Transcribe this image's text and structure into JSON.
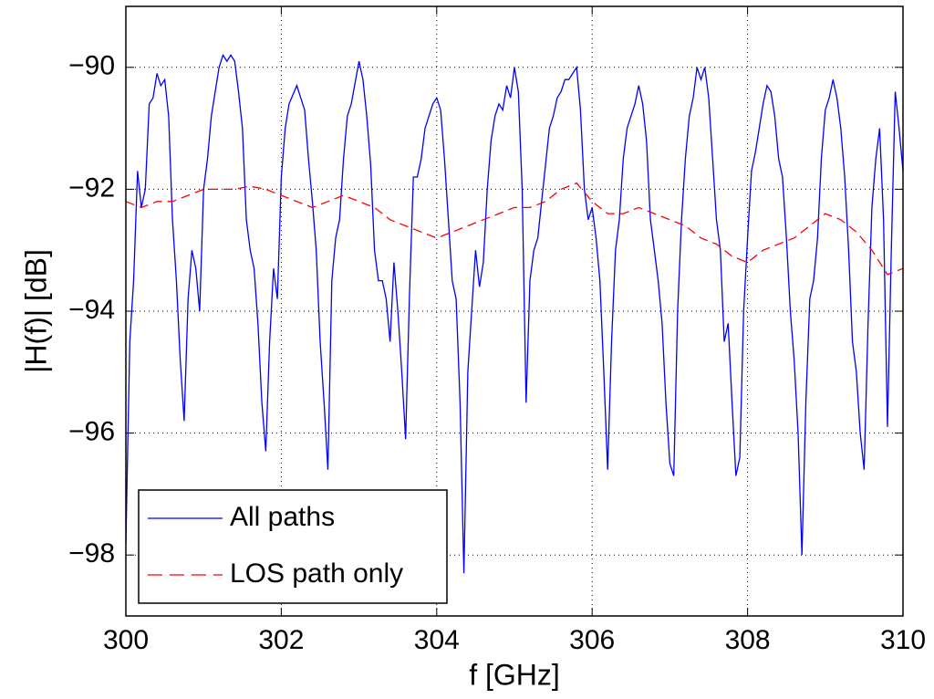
{
  "chart_data": {
    "type": "line",
    "xlabel": "f [GHz]",
    "ylabel": "|H(f)| [dB]",
    "xlim": [
      300,
      310
    ],
    "xticks": [
      300,
      302,
      304,
      306,
      308,
      310
    ],
    "ylim": [
      -99,
      -89
    ],
    "yticks": [
      {
        "value": -98,
        "label": "−98"
      },
      {
        "value": -96,
        "label": "−96"
      },
      {
        "value": -94,
        "label": "−94"
      },
      {
        "value": -92,
        "label": "−92"
      },
      {
        "value": -90,
        "label": "−90"
      }
    ],
    "grid": true,
    "legend": "lower left",
    "series": [
      {
        "name": "All paths",
        "color": "#0000ff",
        "linestyle": "solid",
        "x": [
          300.0,
          300.05,
          300.1,
          300.15,
          300.2,
          300.25,
          300.3,
          300.35,
          300.4,
          300.45,
          300.5,
          300.55,
          300.6,
          300.65,
          300.7,
          300.75,
          300.8,
          300.85,
          300.9,
          300.95,
          301.0,
          301.05,
          301.1,
          301.2,
          301.25,
          301.3,
          301.35,
          301.4,
          301.45,
          301.5,
          301.55,
          301.6,
          301.65,
          301.7,
          301.75,
          301.8,
          301.85,
          301.9,
          301.95,
          302.0,
          302.05,
          302.1,
          302.2,
          302.25,
          302.3,
          302.35,
          302.4,
          302.45,
          302.5,
          302.55,
          302.6,
          302.65,
          302.7,
          302.75,
          302.8,
          302.85,
          302.9,
          303.0,
          303.05,
          303.1,
          303.15,
          303.2,
          303.25,
          303.3,
          303.35,
          303.4,
          303.45,
          303.5,
          303.55,
          303.6,
          303.65,
          303.7,
          303.75,
          303.8,
          303.85,
          303.9,
          303.95,
          304.0,
          304.05,
          304.1,
          304.15,
          304.2,
          304.25,
          304.3,
          304.35,
          304.4,
          304.45,
          304.5,
          304.55,
          304.6,
          304.65,
          304.7,
          304.75,
          304.8,
          304.85,
          304.9,
          304.95,
          305.0,
          305.05,
          305.1,
          305.15,
          305.2,
          305.25,
          305.3,
          305.35,
          305.4,
          305.45,
          305.5,
          305.55,
          305.6,
          305.65,
          305.7,
          305.75,
          305.8,
          305.85,
          305.9,
          305.95,
          306.0,
          306.05,
          306.1,
          306.15,
          306.2,
          306.25,
          306.3,
          306.35,
          306.4,
          306.45,
          306.5,
          306.55,
          306.6,
          306.65,
          306.7,
          306.75,
          306.8,
          306.85,
          306.9,
          306.95,
          307.0,
          307.05,
          307.1,
          307.15,
          307.2,
          307.25,
          307.3,
          307.35,
          307.4,
          307.45,
          307.5,
          307.55,
          307.6,
          307.65,
          307.7,
          307.75,
          307.8,
          307.85,
          307.9,
          307.95,
          308.0,
          308.05,
          308.1,
          308.15,
          308.2,
          308.25,
          308.3,
          308.35,
          308.4,
          308.45,
          308.5,
          308.55,
          308.6,
          308.65,
          308.7,
          308.75,
          308.8,
          308.85,
          308.9,
          308.95,
          309.0,
          309.05,
          309.1,
          309.15,
          309.2,
          309.25,
          309.3,
          309.35,
          309.4,
          309.45,
          309.5,
          309.55,
          309.6,
          309.65,
          309.7,
          309.75,
          309.8,
          309.85,
          309.9,
          309.95,
          310.0
        ],
        "values": [
          -97.8,
          -94.5,
          -93.5,
          -91.7,
          -92.3,
          -92.0,
          -90.6,
          -90.5,
          -90.1,
          -90.3,
          -90.2,
          -90.8,
          -92.5,
          -93.5,
          -94.8,
          -95.8,
          -93.8,
          -93.0,
          -93.3,
          -94.0,
          -92.0,
          -91.5,
          -90.8,
          -90.0,
          -89.8,
          -89.9,
          -89.8,
          -89.9,
          -90.4,
          -91.0,
          -92.5,
          -93.0,
          -93.3,
          -94.2,
          -95.5,
          -96.3,
          -94.5,
          -93.3,
          -93.8,
          -91.8,
          -91.0,
          -90.6,
          -90.3,
          -90.5,
          -90.7,
          -91.5,
          -92.2,
          -93.0,
          -94.5,
          -95.5,
          -96.6,
          -93.5,
          -92.8,
          -92.5,
          -91.5,
          -90.8,
          -90.6,
          -89.9,
          -90.2,
          -90.8,
          -91.6,
          -93.0,
          -93.5,
          -93.5,
          -93.8,
          -94.5,
          -93.2,
          -94.0,
          -95.0,
          -96.1,
          -93.7,
          -91.8,
          -91.8,
          -91.5,
          -91.0,
          -90.8,
          -90.6,
          -90.5,
          -90.7,
          -91.5,
          -92.5,
          -93.5,
          -93.8,
          -95.5,
          -98.3,
          -95.0,
          -94.0,
          -93.0,
          -93.6,
          -93.2,
          -92.0,
          -91.2,
          -90.8,
          -90.6,
          -90.7,
          -90.3,
          -90.5,
          -90.0,
          -90.4,
          -92.0,
          -95.5,
          -93.5,
          -93.0,
          -92.8,
          -92.2,
          -91.6,
          -91.0,
          -90.8,
          -90.5,
          -90.4,
          -90.2,
          -90.2,
          -90.1,
          -90.0,
          -90.7,
          -92.0,
          -92.5,
          -92.3,
          -92.8,
          -93.5,
          -95.0,
          -96.6,
          -94.5,
          -93.0,
          -92.5,
          -91.5,
          -91.0,
          -90.8,
          -90.6,
          -90.3,
          -90.6,
          -91.2,
          -92.5,
          -93.0,
          -93.5,
          -94.2,
          -95.5,
          -96.5,
          -96.7,
          -94.0,
          -92.5,
          -91.5,
          -90.8,
          -90.5,
          -90.0,
          -90.2,
          -90.0,
          -90.5,
          -91.5,
          -92.5,
          -93.0,
          -94.5,
          -94.2,
          -95.5,
          -96.7,
          -96.4,
          -94.0,
          -92.8,
          -91.7,
          -91.4,
          -91.0,
          -90.6,
          -90.3,
          -90.4,
          -90.8,
          -91.5,
          -91.8,
          -92.8,
          -94.0,
          -94.8,
          -96.0,
          -98.0,
          -95.5,
          -93.8,
          -93.5,
          -92.8,
          -91.5,
          -90.7,
          -90.5,
          -90.2,
          -90.5,
          -91.0,
          -91.8,
          -93.0,
          -94.5,
          -95.0,
          -96.0,
          -96.6,
          -94.2,
          -92.3,
          -91.5,
          -91.0,
          -92.5,
          -95.9,
          -93.0,
          -90.4,
          -91.0,
          -91.7
        ]
      },
      {
        "name": "LOS path only",
        "color": "#ff0000",
        "linestyle": "dashed",
        "x": [
          300.0,
          300.2,
          300.4,
          300.6,
          300.8,
          301.0,
          301.2,
          301.4,
          301.6,
          301.8,
          302.0,
          302.2,
          302.4,
          302.6,
          302.8,
          303.0,
          303.2,
          303.4,
          303.6,
          303.8,
          304.0,
          304.2,
          304.4,
          304.6,
          304.8,
          305.0,
          305.2,
          305.4,
          305.6,
          305.8,
          306.0,
          306.2,
          306.4,
          306.6,
          306.8,
          307.0,
          307.2,
          307.4,
          307.6,
          307.8,
          308.0,
          308.2,
          308.4,
          308.6,
          308.8,
          309.0,
          309.2,
          309.4,
          309.6,
          309.8,
          310.0
        ],
        "values": [
          -92.2,
          -92.3,
          -92.2,
          -92.2,
          -92.1,
          -92.0,
          -92.0,
          -92.0,
          -91.95,
          -92.0,
          -92.1,
          -92.2,
          -92.3,
          -92.2,
          -92.1,
          -92.2,
          -92.3,
          -92.5,
          -92.6,
          -92.7,
          -92.8,
          -92.7,
          -92.6,
          -92.5,
          -92.4,
          -92.3,
          -92.3,
          -92.2,
          -92.0,
          -91.9,
          -92.2,
          -92.4,
          -92.4,
          -92.3,
          -92.4,
          -92.5,
          -92.6,
          -92.8,
          -92.9,
          -93.1,
          -93.2,
          -93.0,
          -92.9,
          -92.8,
          -92.6,
          -92.4,
          -92.5,
          -92.7,
          -93.0,
          -93.4,
          -93.3
        ]
      }
    ]
  }
}
